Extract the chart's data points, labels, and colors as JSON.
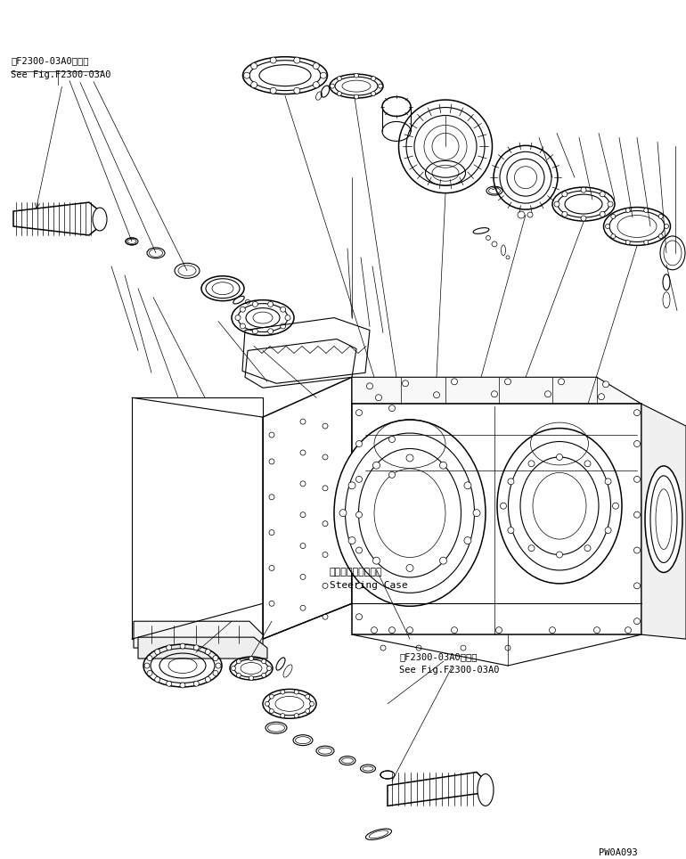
{
  "bg_color": "#ffffff",
  "line_color": "#000000",
  "fig_width": 7.7,
  "fig_height": 9.64,
  "dpi": 100,
  "text_top_left_jp": "第F2300-03A0図参照",
  "text_top_left_en": "See Fig.F2300-03A0",
  "text_steering_jp": "ステアリングケース",
  "text_steering_en": "Steering Case",
  "text_bottom_jp": "第F2300-03A0図参照",
  "text_bottom_en": "See Fig.F2300-03A0",
  "text_page": "PW0A093"
}
